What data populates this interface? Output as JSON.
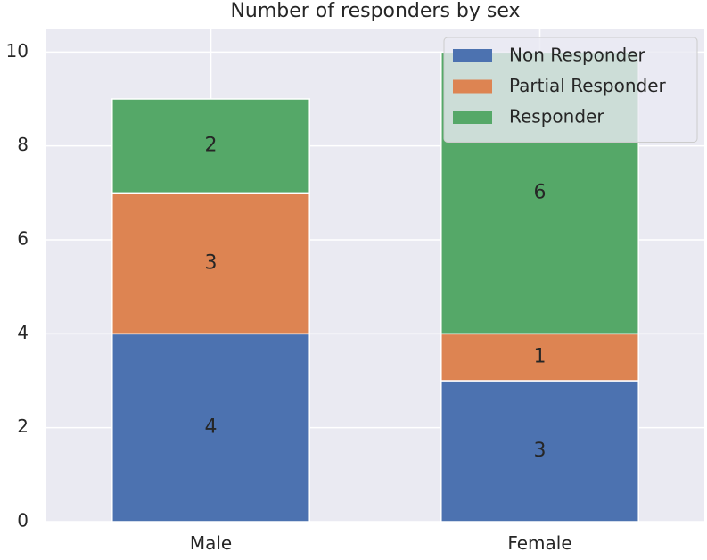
{
  "chart_data": {
    "type": "bar",
    "stacked": true,
    "title": "Number of responders by sex",
    "xlabel": "",
    "ylabel": "",
    "categories": [
      "Male",
      "Female"
    ],
    "series": [
      {
        "name": "Non Responder",
        "values": [
          4,
          3
        ],
        "color": "#4c72b0"
      },
      {
        "name": "Partial Responder",
        "values": [
          3,
          1
        ],
        "color": "#dd8452"
      },
      {
        "name": "Responder",
        "values": [
          2,
          6
        ],
        "color": "#55a868"
      }
    ],
    "ylim": [
      0,
      10.5
    ],
    "yticks": [
      0,
      2,
      4,
      6,
      8,
      10
    ],
    "grid": true,
    "legend_position": "top-right",
    "data_labels": true,
    "background_color": "#eaeaf2",
    "grid_color": "#ffffff"
  }
}
